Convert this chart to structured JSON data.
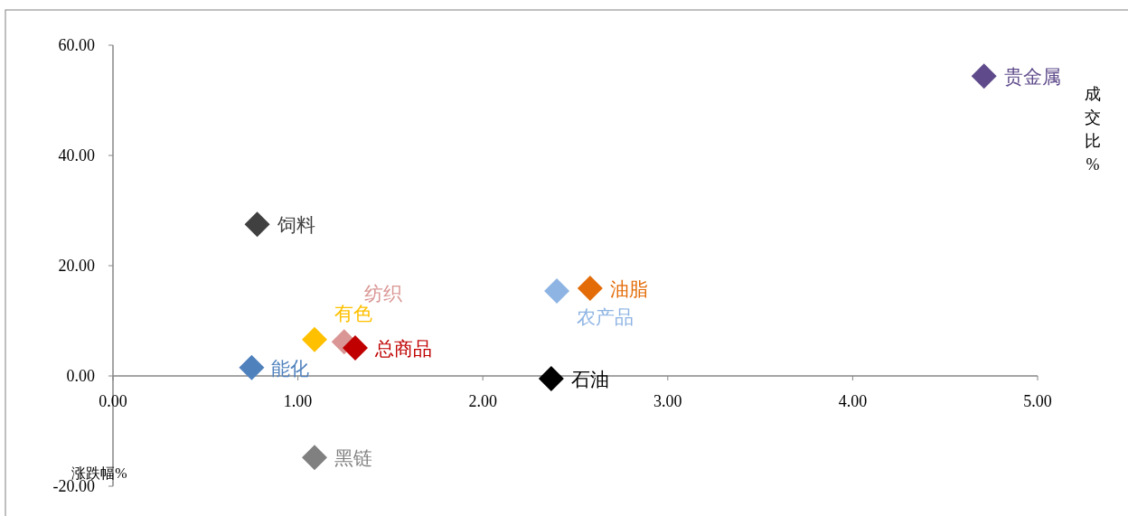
{
  "chart_data": {
    "type": "scatter",
    "xlabel": "成交比%",
    "ylabel": "涨跌幅%",
    "marker": "diamond",
    "legend": false,
    "grid": false,
    "xlim": [
      0,
      5
    ],
    "xticks": [
      {
        "value": 0,
        "label": "0.00"
      },
      {
        "value": 1,
        "label": "1.00"
      },
      {
        "value": 2,
        "label": "2.00"
      },
      {
        "value": 3,
        "label": "3.00"
      },
      {
        "value": 4,
        "label": "4.00"
      },
      {
        "value": 5,
        "label": "5.00"
      }
    ],
    "ylim": [
      -20,
      60
    ],
    "yticks": [
      {
        "value": -20,
        "label": "-20.00"
      },
      {
        "value": 0,
        "label": "0.00"
      },
      {
        "value": 20,
        "label": "20.00"
      },
      {
        "value": 40,
        "label": "40.00"
      },
      {
        "value": 60,
        "label": "60.00"
      }
    ],
    "series": [
      {
        "name": "能化",
        "color": "#4f81bd",
        "x": [
          0.75
        ],
        "values": [
          1.5
        ]
      },
      {
        "name": "饲料",
        "color": "#404040",
        "x": [
          0.78
        ],
        "values": [
          27.5
        ]
      },
      {
        "name": "有色",
        "color": "#ffc000",
        "x": [
          1.09
        ],
        "values": [
          6.6
        ]
      },
      {
        "name": "黑链",
        "color": "#808080",
        "x": [
          1.09
        ],
        "values": [
          -14.8
        ]
      },
      {
        "name": "纺织",
        "color": "#d99694",
        "x": [
          1.25
        ],
        "values": [
          6.2
        ]
      },
      {
        "name": "总商品",
        "color": "#c00000",
        "x": [
          1.31
        ],
        "values": [
          5.1
        ]
      },
      {
        "name": "石油",
        "color": "#000000",
        "x": [
          2.37
        ],
        "values": [
          -0.5
        ]
      },
      {
        "name": "农产品",
        "color": "#8eb4e3",
        "x": [
          2.4
        ],
        "values": [
          15.4
        ]
      },
      {
        "name": "油脂",
        "color": "#e36c09",
        "x": [
          2.58
        ],
        "values": [
          15.9
        ]
      },
      {
        "name": "贵金属",
        "color": "#5f4b8b",
        "x": [
          4.71
        ],
        "values": [
          54.4
        ]
      }
    ]
  }
}
